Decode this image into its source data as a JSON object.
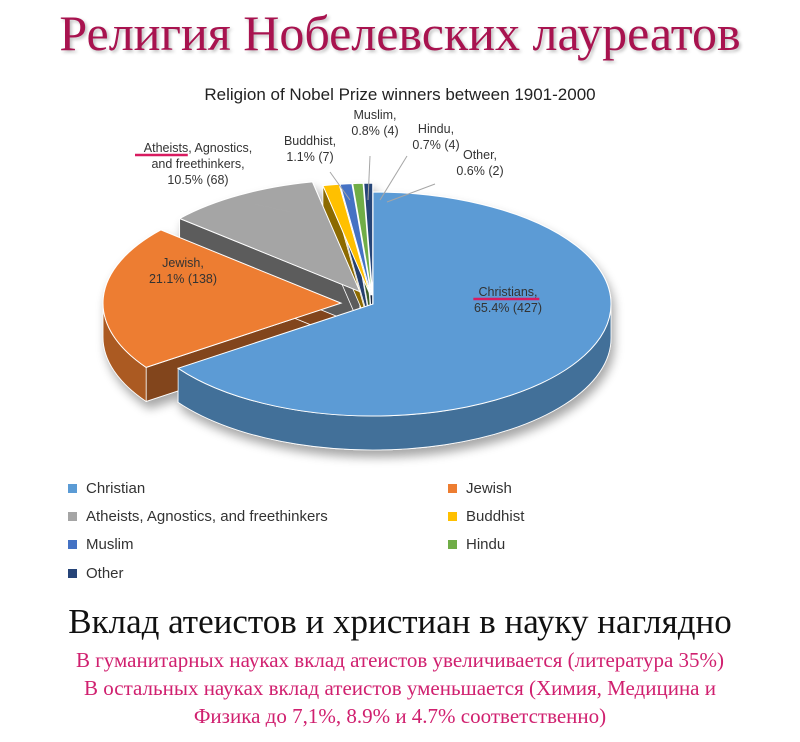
{
  "page": {
    "heading": "Религия Нобелевских лауреатов",
    "footer_title": "Вклад атеистов и христиан в науку наглядно",
    "notes": [
      "В гуманитарных науках вклад атеистов увеличивается (литература 35%)",
      "В остальных науках вклад атеистов уменьшается (Химия, Медицина и",
      "Физика до 7,1%,  8.9% и 4.7% соответственно)"
    ],
    "highlight_color": "#d81b60"
  },
  "chart_data": {
    "type": "pie",
    "style": "3d-exploded",
    "title": "Religion of Nobel Prize winners between 1901-2000",
    "legend_position": "bottom",
    "slices": [
      {
        "label": "Christian",
        "callout_name": "Christians,",
        "value_text": "65.4% (427)",
        "percent": 65.4,
        "count": 427,
        "color": "#5b9bd5",
        "highlighted": true
      },
      {
        "label": "Jewish",
        "callout_name": "Jewish,",
        "value_text": "21.1% (138)",
        "percent": 21.1,
        "count": 138,
        "color": "#ed7d31",
        "highlighted": false
      },
      {
        "label": "Atheists, Agnostics, and freethinkers",
        "callout_name": "Atheists, Agnostics,",
        "callout_name2": "and freethinkers,",
        "value_text": "10.5% (68)",
        "percent": 10.5,
        "count": 68,
        "color": "#a5a5a5",
        "highlighted": true
      },
      {
        "label": "Buddhist",
        "callout_name": "Buddhist,",
        "value_text": "1.1% (7)",
        "percent": 1.1,
        "count": 7,
        "color": "#ffc000",
        "highlighted": false
      },
      {
        "label": "Muslim",
        "callout_name": "Muslim,",
        "value_text": "0.8% (4)",
        "percent": 0.8,
        "count": 4,
        "color": "#4472c4",
        "highlighted": false
      },
      {
        "label": "Hindu",
        "callout_name": "Hindu,",
        "value_text": "0.7% (4)",
        "percent": 0.7,
        "count": 4,
        "color": "#70ad47",
        "highlighted": false
      },
      {
        "label": "Other",
        "callout_name": "Other,",
        "value_text": "0.6% (2)",
        "percent": 0.6,
        "count": 2,
        "color": "#264478",
        "highlighted": false
      }
    ]
  }
}
